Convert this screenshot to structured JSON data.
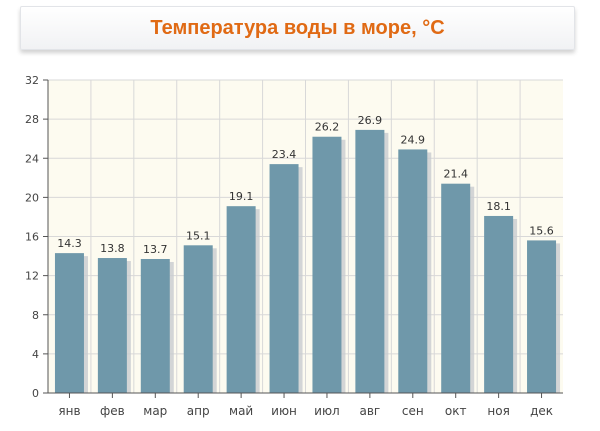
{
  "title": "Температура воды в море, °C",
  "colors": {
    "bar": "#6f98aa",
    "bar_shadow": "#c8ccd0",
    "plot_bg": "#fdfbf0",
    "grid": "#d8d8d8",
    "title": "#e06a14"
  },
  "chart_data": {
    "type": "bar",
    "title": "Температура воды в море, °C",
    "categories": [
      "янв",
      "фев",
      "мар",
      "апр",
      "май",
      "июн",
      "июл",
      "авг",
      "сен",
      "окт",
      "ноя",
      "дек"
    ],
    "values": [
      14.3,
      13.8,
      13.7,
      15.1,
      19.1,
      23.4,
      26.2,
      26.9,
      24.9,
      21.4,
      18.1,
      15.6
    ],
    "value_labels": [
      "14.3",
      "13.8",
      "13.7",
      "15.1",
      "19.1",
      "23.4",
      "26.2",
      "26.9",
      "24.9",
      "21.4",
      "18.1",
      "15.6"
    ],
    "yticks": [
      "0",
      "4",
      "8",
      "12",
      "16",
      "20",
      "24",
      "28",
      "32"
    ],
    "ylim": [
      0,
      32
    ],
    "grid": true,
    "xlabel": "",
    "ylabel": ""
  }
}
